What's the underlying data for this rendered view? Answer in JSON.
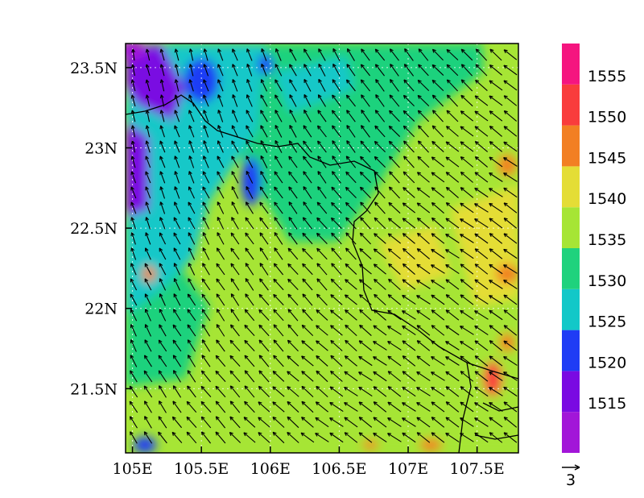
{
  "map": {
    "lon_range": [
      104.95,
      107.8
    ],
    "lat_range": [
      21.1,
      23.65
    ],
    "x_ticks": [
      {
        "value": 105.0,
        "label": "105E"
      },
      {
        "value": 105.5,
        "label": "105.5E"
      },
      {
        "value": 106.0,
        "label": "106E"
      },
      {
        "value": 106.5,
        "label": "106.5E"
      },
      {
        "value": 107.0,
        "label": "107E"
      },
      {
        "value": 107.5,
        "label": "107.5E"
      }
    ],
    "y_ticks": [
      {
        "value": 21.5,
        "label": "21.5N"
      },
      {
        "value": 22.0,
        "label": "22N"
      },
      {
        "value": 22.5,
        "label": "22.5N"
      },
      {
        "value": 23.0,
        "label": "23N"
      },
      {
        "value": 23.5,
        "label": "23.5N"
      }
    ],
    "grid": "dotted",
    "vector_reference": "3",
    "wind_direction": "toward north-west"
  },
  "colorbar": {
    "placement": "right",
    "levels": [
      {
        "label": "",
        "color": "#a216d8"
      },
      {
        "label": "1515",
        "color": "#7a0ae2"
      },
      {
        "label": "1520",
        "color": "#1f3cf5"
      },
      {
        "label": "1525",
        "color": "#12c8c8"
      },
      {
        "label": "1530",
        "color": "#1fd27d"
      },
      {
        "label": "1535",
        "color": "#a6e535"
      },
      {
        "label": "1540",
        "color": "#e4dd36"
      },
      {
        "label": "1545",
        "color": "#f27f23"
      },
      {
        "label": "1550",
        "color": "#f93c3c"
      },
      {
        "label": "1555",
        "color": "#f5157f"
      }
    ]
  }
}
